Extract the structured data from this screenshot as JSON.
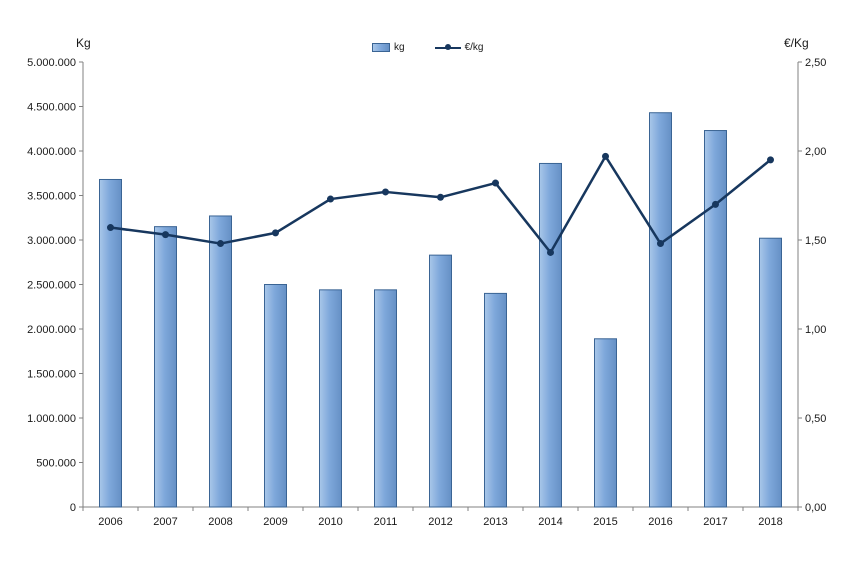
{
  "chart_data": {
    "type": "bar",
    "subtype": "combo-bar-line-dual-axis",
    "categories": [
      "2006",
      "2007",
      "2008",
      "2009",
      "2010",
      "2011",
      "2012",
      "2013",
      "2014",
      "2015",
      "2016",
      "2017",
      "2018"
    ],
    "series": [
      {
        "name": "kg",
        "type": "bar",
        "axis": "left",
        "values": [
          3680000,
          3150000,
          3270000,
          2500000,
          2440000,
          2440000,
          2830000,
          2400000,
          3860000,
          1890000,
          4430000,
          4230000,
          3020000
        ]
      },
      {
        "name": "€/kg",
        "type": "line",
        "axis": "right",
        "values": [
          1.57,
          1.53,
          1.48,
          1.54,
          1.73,
          1.77,
          1.74,
          1.82,
          1.43,
          1.97,
          1.48,
          1.7,
          1.95
        ]
      }
    ],
    "left_axis": {
      "title": "Kg",
      "min": 0,
      "max": 5000000,
      "step": 500000,
      "tick_labels": [
        "5.000.000",
        "4.500.000",
        "4.000.000",
        "3.500.000",
        "3.000.000",
        "2.500.000",
        "2.000.000",
        "1.500.000",
        "1.000.000",
        "500.000",
        "0"
      ]
    },
    "right_axis": {
      "title": "€/Kg",
      "min": 0,
      "max": 2.5,
      "step": 0.5,
      "tick_labels": [
        "2,50",
        "2,00",
        "1,50",
        "1,00",
        "0,50",
        "0,00"
      ]
    },
    "legend_position": "top-center",
    "grid": "off",
    "colors": {
      "bar_fill": "#7FA8DB",
      "bar_stroke": "#3A6494",
      "line": "#17375E",
      "axis": "#808080"
    }
  }
}
